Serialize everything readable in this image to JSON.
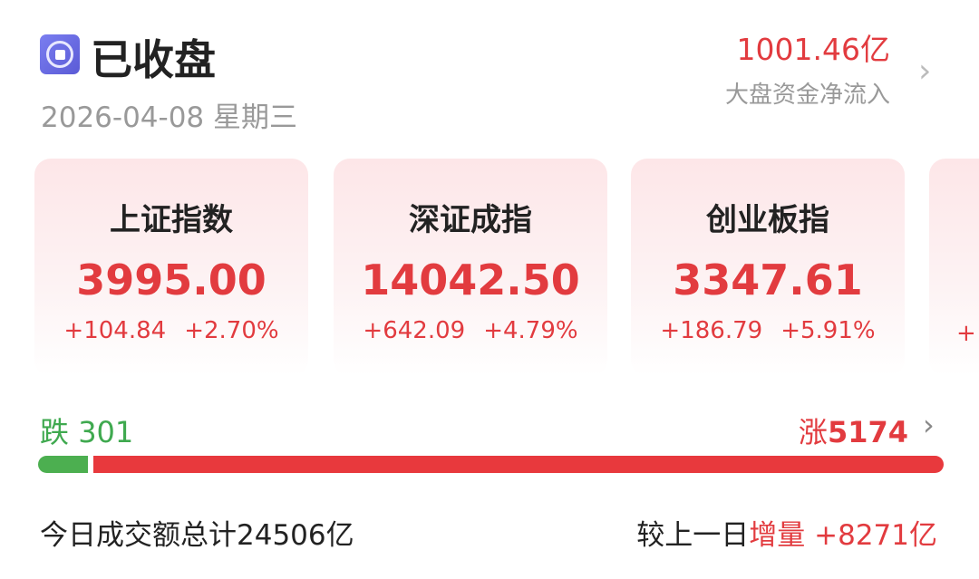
{
  "header": {
    "status": "已收盘",
    "date": "2026-04-08",
    "weekday": "星期三",
    "icon": "closed-market-icon"
  },
  "fund_flow": {
    "value": "1001.46亿",
    "label": "大盘资金净流入"
  },
  "indices": [
    {
      "name": "上证指数",
      "value": "3995.00",
      "change": "+104.84",
      "pct": "+2.70%"
    },
    {
      "name": "深证成指",
      "value": "14042.50",
      "change": "+642.09",
      "pct": "+4.79%"
    },
    {
      "name": "创业板指",
      "value": "3347.61",
      "change": "+186.79",
      "pct": "+5.91%"
    },
    {
      "change": "+"
    }
  ],
  "breadth": {
    "down_label": "跌",
    "down": "301",
    "up_label": "涨",
    "up": "5174",
    "down_fraction": 0.055
  },
  "volume": {
    "label": "今日成交额总计",
    "value": "24506亿",
    "compare_label": "较上一日",
    "compare_type": "增量",
    "compare_value": "+8271亿"
  },
  "colors": {
    "up": "#e23b3f",
    "down": "#3fa94f",
    "accent": "#5b5bd6"
  }
}
